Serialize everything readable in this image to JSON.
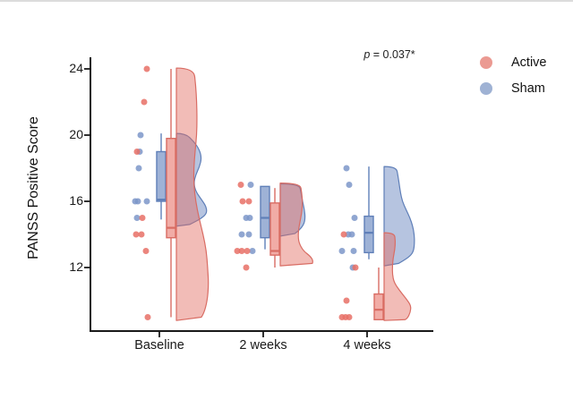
{
  "figure": {
    "background": "#ffffff",
    "top_edge_color": "#dcdcdc"
  },
  "chart_data": {
    "type": "raincloud",
    "base_type": "scatter",
    "title": "",
    "xlabel": "",
    "ylabel": "PANSS Positive Score",
    "categories": [
      "Baseline",
      "2 weeks",
      "4 weeks"
    ],
    "y_ticks": [
      12,
      16,
      20,
      24
    ],
    "ylim": [
      8.2,
      24.7
    ],
    "grid": false,
    "legend_position": "top-right",
    "annotation": {
      "italic": "p",
      "text": " = 0.037*"
    },
    "legend": [
      {
        "label": "Active",
        "color": "#eb9a92"
      },
      {
        "label": "Sham",
        "color": "#9fb2d4"
      }
    ],
    "axis_color": "#1a1a1a",
    "series": [
      {
        "name": "Sham",
        "stroke": "#5f7fb8",
        "box_fill": "rgba(148,170,210,0.9)",
        "violin_fill": "rgba(122,148,199,0.55)",
        "point_fill": "rgba(124,150,201,0.85)",
        "by_category": [
          {
            "points": [
              [
                20,
                -21
              ],
              [
                19,
                -22
              ],
              [
                18,
                -23
              ],
              [
                16,
                -27
              ],
              [
                16,
                -24
              ],
              [
                16,
                -14
              ],
              [
                15,
                -25
              ]
            ],
            "box": {
              "q1": 16.0,
              "med": 16.1,
              "q3": 19.0,
              "lo": 14.9,
              "hi": 20.1
            },
            "violin": {
              "maxw": 36,
              "profile": [
                [
                  20.1,
                  0.28
                ],
                [
                  19.6,
                  0.55
                ],
                [
                  19.1,
                  0.72
                ],
                [
                  18.6,
                  0.78
                ],
                [
                  18.1,
                  0.72
                ],
                [
                  17.6,
                  0.6
                ],
                [
                  17.1,
                  0.54
                ],
                [
                  16.6,
                  0.6
                ],
                [
                  16.1,
                  0.78
                ],
                [
                  15.7,
                  0.92
                ],
                [
                  15.3,
                  0.95
                ],
                [
                  15.0,
                  0.8
                ],
                [
                  14.7,
                  0.52
                ],
                [
                  14.5,
                  0.3
                ]
              ]
            }
          },
          {
            "points": [
              [
                17,
                -14
              ],
              [
                15,
                -19
              ],
              [
                15,
                -15
              ],
              [
                14,
                -24
              ],
              [
                14,
                -16
              ],
              [
                13,
                -12
              ]
            ],
            "box": {
              "q1": 13.8,
              "med": 15.0,
              "q3": 16.9,
              "lo": 13.1,
              "hi": 16.9
            },
            "violin": {
              "maxw": 30,
              "profile": [
                [
                  17.05,
                  0.7
                ],
                [
                  16.5,
                  0.78
                ],
                [
                  16.0,
                  0.83
                ],
                [
                  15.5,
                  0.9
                ],
                [
                  15.0,
                  0.93
                ],
                [
                  14.6,
                  0.88
                ],
                [
                  14.2,
                  0.68
                ],
                [
                  13.9,
                  0.4
                ]
              ]
            }
          },
          {
            "points": [
              [
                18,
                -23
              ],
              [
                17,
                -20
              ],
              [
                15,
                -14
              ],
              [
                14,
                -21
              ],
              [
                14,
                -17
              ],
              [
                13,
                -28
              ],
              [
                13,
                -15
              ],
              [
                12,
                -16
              ]
            ],
            "box": {
              "q1": 12.9,
              "med": 14.1,
              "q3": 15.1,
              "lo": 12.5,
              "hi": 18.1
            },
            "violin": {
              "maxw": 34,
              "profile": [
                [
                  18.1,
                  0.4
                ],
                [
                  17.5,
                  0.46
                ],
                [
                  17.0,
                  0.5
                ],
                [
                  16.5,
                  0.54
                ],
                [
                  16.0,
                  0.6
                ],
                [
                  15.5,
                  0.72
                ],
                [
                  15.0,
                  0.85
                ],
                [
                  14.5,
                  0.94
                ],
                [
                  14.0,
                  0.99
                ],
                [
                  13.5,
                  1.0
                ],
                [
                  13.0,
                  0.97
                ],
                [
                  12.7,
                  0.86
                ],
                [
                  12.4,
                  0.62
                ],
                [
                  12.1,
                  0.34
                ]
              ]
            }
          }
        ]
      },
      {
        "name": "Active",
        "stroke": "#d96c63",
        "box_fill": "rgba(238,158,150,0.85)",
        "violin_fill": "rgba(226,106,96,0.45)",
        "point_fill": "rgba(231,112,102,0.85)",
        "by_category": [
          {
            "points": [
              [
                24,
                -14
              ],
              [
                22,
                -17
              ],
              [
                19,
                -25
              ],
              [
                15,
                -19
              ],
              [
                14,
                -26
              ],
              [
                14,
                -20
              ],
              [
                13,
                -15
              ],
              [
                9,
                -13
              ]
            ],
            "box": {
              "q1": 13.8,
              "med": 14.4,
              "q3": 19.8,
              "lo": 9.0,
              "hi": 24.0
            },
            "violin": {
              "maxw": 36,
              "profile": [
                [
                  24.05,
                  0.54
                ],
                [
                  23,
                  0.6
                ],
                [
                  22,
                  0.63
                ],
                [
                  21,
                  0.64
                ],
                [
                  20,
                  0.63
                ],
                [
                  19,
                  0.58
                ],
                [
                  18,
                  0.54
                ],
                [
                  17,
                  0.54
                ],
                [
                  16,
                  0.6
                ],
                [
                  15,
                  0.7
                ],
                [
                  14,
                  0.83
                ],
                [
                  13,
                  0.93
                ],
                [
                  12,
                  0.97
                ],
                [
                  11,
                  1.0
                ],
                [
                  10,
                  0.96
                ],
                [
                  9.2,
                  0.85
                ],
                [
                  8.8,
                  0.7
                ]
              ]
            }
          },
          {
            "points": [
              [
                17,
                -25
              ],
              [
                16,
                -23
              ],
              [
                16,
                -16
              ],
              [
                13,
                -29
              ],
              [
                13,
                -24
              ],
              [
                13,
                -18
              ],
              [
                12,
                -19
              ]
            ],
            "box": {
              "q1": 12.75,
              "med": 13.0,
              "q3": 15.9,
              "lo": 12.0,
              "hi": 16.8
            },
            "violin": {
              "maxw": 37,
              "profile": [
                [
                  17.1,
                  0.6
                ],
                [
                  16.5,
                  0.65
                ],
                [
                  16.0,
                  0.67
                ],
                [
                  15.5,
                  0.66
                ],
                [
                  15.0,
                  0.62
                ],
                [
                  14.5,
                  0.57
                ],
                [
                  14.0,
                  0.54
                ],
                [
                  13.5,
                  0.56
                ],
                [
                  13.0,
                  0.7
                ],
                [
                  12.7,
                  0.9
                ],
                [
                  12.4,
                  1.0
                ],
                [
                  12.1,
                  0.94
                ]
              ]
            }
          },
          {
            "points": [
              [
                14,
                -26
              ],
              [
                12,
                -13
              ],
              [
                10,
                -23
              ],
              [
                9,
                -28
              ],
              [
                9,
                -24
              ],
              [
                9,
                -20
              ]
            ],
            "box": {
              "q1": 8.85,
              "med": 9.45,
              "q3": 10.4,
              "lo": 8.85,
              "hi": 12.0
            },
            "violin": {
              "maxw": 30,
              "profile": [
                [
                  14.1,
                  0.38
                ],
                [
                  13.6,
                  0.42
                ],
                [
                  13.1,
                  0.4
                ],
                [
                  12.6,
                  0.34
                ],
                [
                  12.1,
                  0.31
                ],
                [
                  11.6,
                  0.31
                ],
                [
                  11.1,
                  0.37
                ],
                [
                  10.6,
                  0.58
                ],
                [
                  10.1,
                  0.83
                ],
                [
                  9.7,
                  1.0
                ],
                [
                  9.3,
                  0.98
                ],
                [
                  8.9,
                  0.86
                ],
                [
                  8.8,
                  0.7
                ]
              ]
            }
          }
        ]
      }
    ]
  }
}
